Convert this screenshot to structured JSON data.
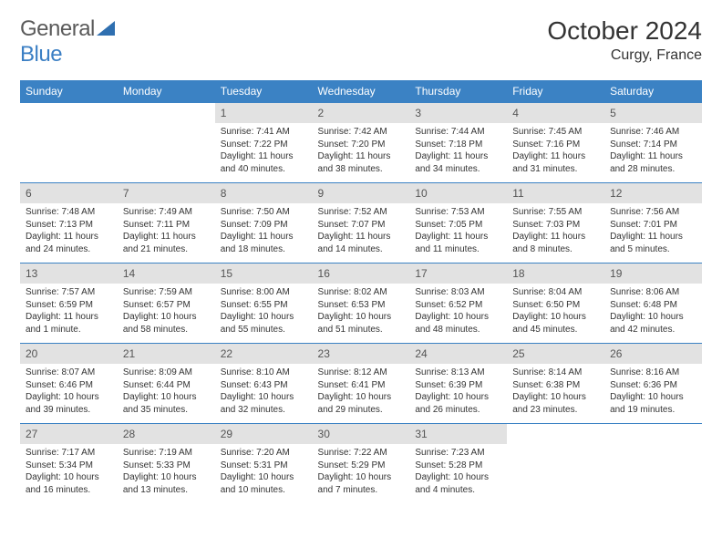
{
  "brand": {
    "name_a": "General",
    "name_b": "Blue"
  },
  "header": {
    "month": "October 2024",
    "location": "Curgy, France"
  },
  "colors": {
    "header_bg": "#3b82c4",
    "header_text": "#ffffff",
    "daynum_bg": "#e2e2e2",
    "rule": "#3b82c4"
  },
  "weekdays": [
    "Sunday",
    "Monday",
    "Tuesday",
    "Wednesday",
    "Thursday",
    "Friday",
    "Saturday"
  ],
  "grid": [
    [
      null,
      null,
      {
        "n": "1",
        "sr": "7:41 AM",
        "ss": "7:22 PM",
        "dl": "11 hours and 40 minutes."
      },
      {
        "n": "2",
        "sr": "7:42 AM",
        "ss": "7:20 PM",
        "dl": "11 hours and 38 minutes."
      },
      {
        "n": "3",
        "sr": "7:44 AM",
        "ss": "7:18 PM",
        "dl": "11 hours and 34 minutes."
      },
      {
        "n": "4",
        "sr": "7:45 AM",
        "ss": "7:16 PM",
        "dl": "11 hours and 31 minutes."
      },
      {
        "n": "5",
        "sr": "7:46 AM",
        "ss": "7:14 PM",
        "dl": "11 hours and 28 minutes."
      }
    ],
    [
      {
        "n": "6",
        "sr": "7:48 AM",
        "ss": "7:13 PM",
        "dl": "11 hours and 24 minutes."
      },
      {
        "n": "7",
        "sr": "7:49 AM",
        "ss": "7:11 PM",
        "dl": "11 hours and 21 minutes."
      },
      {
        "n": "8",
        "sr": "7:50 AM",
        "ss": "7:09 PM",
        "dl": "11 hours and 18 minutes."
      },
      {
        "n": "9",
        "sr": "7:52 AM",
        "ss": "7:07 PM",
        "dl": "11 hours and 14 minutes."
      },
      {
        "n": "10",
        "sr": "7:53 AM",
        "ss": "7:05 PM",
        "dl": "11 hours and 11 minutes."
      },
      {
        "n": "11",
        "sr": "7:55 AM",
        "ss": "7:03 PM",
        "dl": "11 hours and 8 minutes."
      },
      {
        "n": "12",
        "sr": "7:56 AM",
        "ss": "7:01 PM",
        "dl": "11 hours and 5 minutes."
      }
    ],
    [
      {
        "n": "13",
        "sr": "7:57 AM",
        "ss": "6:59 PM",
        "dl": "11 hours and 1 minute."
      },
      {
        "n": "14",
        "sr": "7:59 AM",
        "ss": "6:57 PM",
        "dl": "10 hours and 58 minutes."
      },
      {
        "n": "15",
        "sr": "8:00 AM",
        "ss": "6:55 PM",
        "dl": "10 hours and 55 minutes."
      },
      {
        "n": "16",
        "sr": "8:02 AM",
        "ss": "6:53 PM",
        "dl": "10 hours and 51 minutes."
      },
      {
        "n": "17",
        "sr": "8:03 AM",
        "ss": "6:52 PM",
        "dl": "10 hours and 48 minutes."
      },
      {
        "n": "18",
        "sr": "8:04 AM",
        "ss": "6:50 PM",
        "dl": "10 hours and 45 minutes."
      },
      {
        "n": "19",
        "sr": "8:06 AM",
        "ss": "6:48 PM",
        "dl": "10 hours and 42 minutes."
      }
    ],
    [
      {
        "n": "20",
        "sr": "8:07 AM",
        "ss": "6:46 PM",
        "dl": "10 hours and 39 minutes."
      },
      {
        "n": "21",
        "sr": "8:09 AM",
        "ss": "6:44 PM",
        "dl": "10 hours and 35 minutes."
      },
      {
        "n": "22",
        "sr": "8:10 AM",
        "ss": "6:43 PM",
        "dl": "10 hours and 32 minutes."
      },
      {
        "n": "23",
        "sr": "8:12 AM",
        "ss": "6:41 PM",
        "dl": "10 hours and 29 minutes."
      },
      {
        "n": "24",
        "sr": "8:13 AM",
        "ss": "6:39 PM",
        "dl": "10 hours and 26 minutes."
      },
      {
        "n": "25",
        "sr": "8:14 AM",
        "ss": "6:38 PM",
        "dl": "10 hours and 23 minutes."
      },
      {
        "n": "26",
        "sr": "8:16 AM",
        "ss": "6:36 PM",
        "dl": "10 hours and 19 minutes."
      }
    ],
    [
      {
        "n": "27",
        "sr": "7:17 AM",
        "ss": "5:34 PM",
        "dl": "10 hours and 16 minutes."
      },
      {
        "n": "28",
        "sr": "7:19 AM",
        "ss": "5:33 PM",
        "dl": "10 hours and 13 minutes."
      },
      {
        "n": "29",
        "sr": "7:20 AM",
        "ss": "5:31 PM",
        "dl": "10 hours and 10 minutes."
      },
      {
        "n": "30",
        "sr": "7:22 AM",
        "ss": "5:29 PM",
        "dl": "10 hours and 7 minutes."
      },
      {
        "n": "31",
        "sr": "7:23 AM",
        "ss": "5:28 PM",
        "dl": "10 hours and 4 minutes."
      },
      null,
      null
    ]
  ],
  "labels": {
    "sunrise": "Sunrise:",
    "sunset": "Sunset:",
    "daylight": "Daylight:"
  }
}
